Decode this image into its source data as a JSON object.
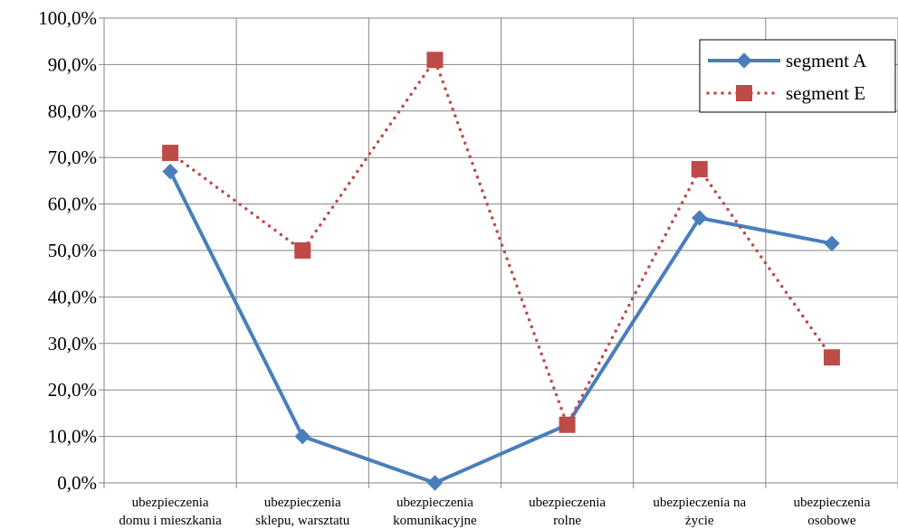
{
  "chart_data": {
    "type": "line",
    "categories": [
      [
        "ubezpieczenia",
        "domu i mieszkania"
      ],
      [
        "ubezpieczenia",
        "sklepu, warsztatu"
      ],
      [
        "ubezpieczenia",
        "komunikacyjne"
      ],
      [
        "ubezpieczenia",
        "rolne"
      ],
      [
        "ubezpieczenia na",
        "życie"
      ],
      [
        "ubezpieczenia",
        "osobowe"
      ]
    ],
    "series": [
      {
        "name": "segment A",
        "values": [
          67.0,
          10.0,
          0.0,
          12.5,
          57.0,
          51.5
        ],
        "color": "#4a7ebb",
        "style": "solid",
        "marker": "diamond"
      },
      {
        "name": "segment E",
        "values": [
          71.0,
          50.0,
          91.0,
          12.5,
          67.5,
          27.0
        ],
        "color": "#be4b48",
        "style": "dotted",
        "marker": "square"
      }
    ],
    "ylim": [
      0,
      100
    ],
    "yticks": [
      "0,0%",
      "10,0%",
      "20,0%",
      "30,0%",
      "40,0%",
      "50,0%",
      "60,0%",
      "70,0%",
      "80,0%",
      "90,0%",
      "100,0%"
    ],
    "title": "",
    "xlabel": "",
    "ylabel": "",
    "grid": true,
    "legend_position": "top-right"
  }
}
